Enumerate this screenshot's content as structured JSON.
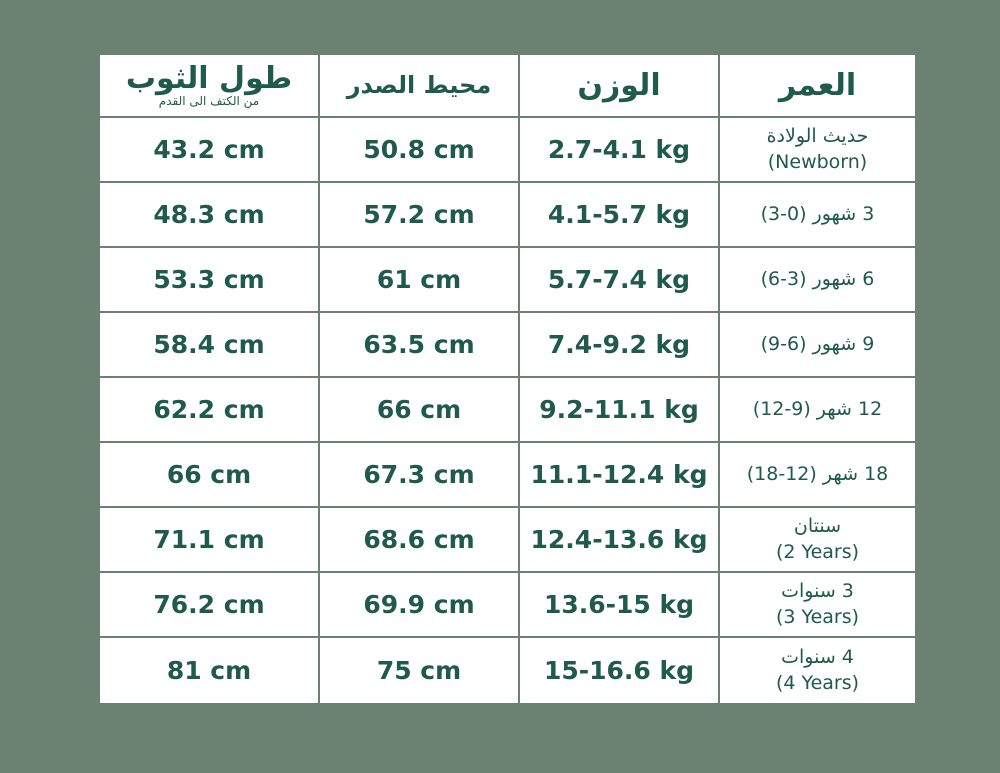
{
  "headers": [
    {
      "title": "طول الثوب",
      "subtitle": "من الكتف الى القدم"
    },
    {
      "title": "محيط الصدر"
    },
    {
      "title": "الوزن"
    },
    {
      "title": "العمر"
    }
  ],
  "rows": [
    {
      "length": "43.2 cm",
      "chest": "50.8 cm",
      "weight": "2.7-4.1 kg",
      "age_ar": "حديث الولادة",
      "age_en": "(Newborn)"
    },
    {
      "length": "48.3 cm",
      "chest": "57.2 cm",
      "weight": "4.1-5.7 kg",
      "age_ar": "3 شهور (0-3)",
      "age_en": ""
    },
    {
      "length": "53.3 cm",
      "chest": "61 cm",
      "weight": "5.7-7.4 kg",
      "age_ar": "6 شهور (3-6)",
      "age_en": ""
    },
    {
      "length": "58.4 cm",
      "chest": "63.5 cm",
      "weight": "7.4-9.2 kg",
      "age_ar": "9 شهور (6-9)",
      "age_en": ""
    },
    {
      "length": "62.2 cm",
      "chest": "66 cm",
      "weight": "9.2-11.1 kg",
      "age_ar": "12 شهر (9-12)",
      "age_en": ""
    },
    {
      "length": "66 cm",
      "chest": "67.3 cm",
      "weight": "11.1-12.4 kg",
      "age_ar": "18 شهر (12-18)",
      "age_en": ""
    },
    {
      "length": "71.1 cm",
      "chest": "68.6 cm",
      "weight": "12.4-13.6 kg",
      "age_ar": "سنتان",
      "age_en": "(2 Years)"
    },
    {
      "length": "76.2 cm",
      "chest": "69.9 cm",
      "weight": "13.6-15 kg",
      "age_ar": "3 سنوات",
      "age_en": "(3 Years)"
    },
    {
      "length": "81 cm",
      "chest": "75 cm",
      "weight": "15-16.6 kg",
      "age_ar": "4 سنوات",
      "age_en": "(4 Years)"
    }
  ],
  "colors": {
    "background": "#6b8171",
    "text": "#1f5a4a",
    "table": "#ffffff"
  }
}
